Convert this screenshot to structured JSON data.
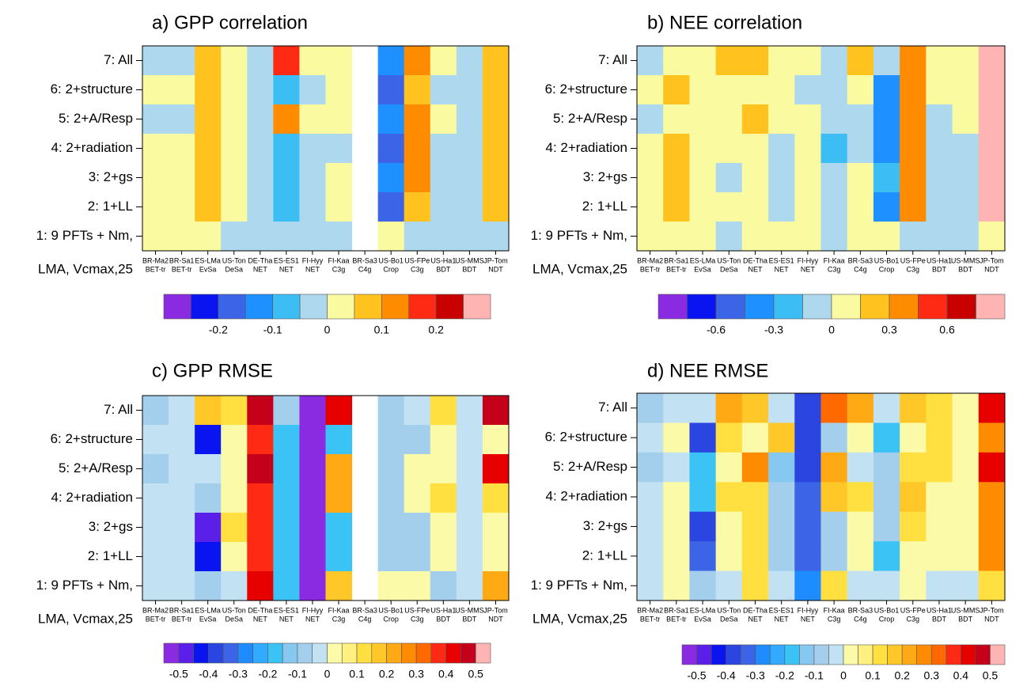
{
  "chart_data": [
    {
      "type": "heatmap",
      "title": "a) GPP correlation",
      "categories": [
        "BR-Ma2",
        "BR-Sa1",
        "ES-LMa",
        "US-Ton",
        "DE-Tha",
        "ES-ES1",
        "FI-Hyy",
        "FI-Kaa",
        "BR-Sa3",
        "US-Bo1",
        "US-FPe",
        "US-Ha1",
        "US-MMS",
        "JP-Tom"
      ],
      "subcategories": [
        "BET-tr",
        "BET-tr",
        "EvSa",
        "DeSa",
        "NET",
        "NET",
        "NET",
        "C3g",
        "C4g",
        "Crop",
        "C3g",
        "BDT",
        "BDT",
        "NDT"
      ],
      "rows": [
        "7: All",
        "6: 2+structure",
        "5: 2+A/Resp",
        "4: 2+radiation",
        "3: 2+gs",
        "2: 1+LL",
        "1: 9 PFTs + Nm,"
      ],
      "row_note": "LMA, Vcmax,25",
      "values": [
        [
          -0.025,
          -0.025,
          0.075,
          0.025,
          -0.025,
          0.175,
          0.025,
          0.025,
          null,
          -0.125,
          0.125,
          0.025,
          -0.025,
          0.075
        ],
        [
          0.025,
          0.025,
          0.075,
          0.025,
          -0.025,
          -0.075,
          -0.025,
          0.025,
          null,
          -0.175,
          0.075,
          -0.025,
          -0.025,
          0.075
        ],
        [
          -0.025,
          -0.025,
          0.075,
          0.025,
          -0.025,
          0.125,
          0.025,
          0.025,
          null,
          -0.125,
          0.125,
          0.025,
          -0.025,
          0.075
        ],
        [
          0.025,
          0.025,
          0.075,
          0.025,
          -0.025,
          -0.075,
          -0.025,
          -0.025,
          null,
          -0.175,
          0.125,
          -0.025,
          -0.025,
          0.075
        ],
        [
          0.025,
          0.025,
          0.075,
          0.025,
          -0.025,
          -0.075,
          -0.025,
          0.025,
          null,
          -0.125,
          0.125,
          -0.025,
          -0.025,
          0.075
        ],
        [
          0.025,
          0.025,
          0.075,
          0.025,
          -0.025,
          -0.075,
          -0.025,
          0.025,
          null,
          -0.175,
          0.075,
          -0.025,
          -0.025,
          0.075
        ],
        [
          0.025,
          0.025,
          0.025,
          -0.025,
          -0.025,
          -0.025,
          -0.025,
          -0.025,
          null,
          0.025,
          -0.025,
          -0.025,
          -0.025,
          -0.025
        ]
      ],
      "colorbar": {
        "levels": [
          -0.3,
          -0.25,
          -0.2,
          -0.15,
          -0.1,
          -0.05,
          0,
          0.05,
          0.1,
          0.15,
          0.2,
          0.25,
          0.3
        ],
        "colors": [
          "#8a2be2",
          "#0a14f0",
          "#3c64e6",
          "#1e90ff",
          "#3cbef5",
          "#add8ee",
          "#fafaa0",
          "#ffc21e",
          "#ff8c00",
          "#ff2a14",
          "#c80000",
          "#ffb4b4"
        ],
        "ticks": [
          -0.2,
          -0.1,
          0,
          0.1,
          0.2
        ]
      }
    },
    {
      "type": "heatmap",
      "title": "b) NEE correlation",
      "categories": [
        "BR-Ma2",
        "BR-Sa1",
        "ES-LMa",
        "US-Ton",
        "DE-Tha",
        "ES-ES1",
        "FI-Hyy",
        "FI-Kaa",
        "BR-Sa3",
        "US-Bo1",
        "US-FPe",
        "US-Ha1",
        "US-MMS",
        "JP-Tom"
      ],
      "subcategories": [
        "BET-tr",
        "BET-tr",
        "EvSa",
        "DeSa",
        "NET",
        "NET",
        "NET",
        "C3g",
        "C4g",
        "Crop",
        "C3g",
        "BDT",
        "BDT",
        "NDT"
      ],
      "rows": [
        "7: All",
        "6: 2+structure",
        "5: 2+A/Resp",
        "4: 2+radiation",
        "3: 2+gs",
        "2: 1+LL",
        "1: 9 PFTs + Nm,"
      ],
      "row_note": "LMA, Vcmax,25",
      "values": [
        [
          -0.075,
          0.075,
          0.075,
          0.225,
          0.225,
          0.075,
          0.075,
          -0.075,
          0.225,
          -0.075,
          0.375,
          0.075,
          0.075,
          0.825
        ],
        [
          0.075,
          0.225,
          0.075,
          0.075,
          0.075,
          0.075,
          -0.075,
          -0.075,
          0.075,
          -0.375,
          0.375,
          0.075,
          0.075,
          0.825
        ],
        [
          -0.075,
          0.075,
          0.075,
          0.075,
          0.225,
          0.075,
          0.075,
          -0.075,
          -0.075,
          -0.375,
          0.375,
          -0.075,
          0.075,
          0.825
        ],
        [
          0.075,
          0.225,
          0.075,
          0.075,
          0.075,
          -0.075,
          0.075,
          -0.225,
          -0.075,
          -0.375,
          0.375,
          -0.075,
          -0.075,
          0.825
        ],
        [
          0.075,
          0.225,
          0.075,
          -0.075,
          0.075,
          -0.075,
          0.075,
          -0.075,
          0.075,
          -0.225,
          0.375,
          -0.075,
          -0.075,
          0.825
        ],
        [
          0.075,
          0.225,
          0.075,
          0.075,
          0.075,
          -0.075,
          0.075,
          -0.075,
          0.075,
          -0.375,
          0.375,
          -0.075,
          -0.075,
          0.825
        ],
        [
          0.075,
          0.075,
          0.075,
          -0.075,
          0.075,
          0.075,
          0.075,
          -0.075,
          0.075,
          0.075,
          -0.075,
          -0.075,
          -0.075,
          0.075
        ]
      ],
      "colorbar": {
        "levels": [
          -0.9,
          -0.75,
          -0.6,
          -0.45,
          -0.3,
          -0.15,
          0,
          0.15,
          0.3,
          0.45,
          0.6,
          0.75,
          0.9
        ],
        "colors": [
          "#8a2be2",
          "#0a14f0",
          "#3c64e6",
          "#1e90ff",
          "#3cbef5",
          "#add8ee",
          "#fafaa0",
          "#ffc21e",
          "#ff8c00",
          "#ff2a14",
          "#c80000",
          "#ffb4b4"
        ],
        "ticks": [
          -0.6,
          -0.3,
          0,
          0.3,
          0.6
        ]
      }
    },
    {
      "type": "heatmap",
      "title": "c) GPP RMSE",
      "categories": [
        "BR-Ma2",
        "BR-Sa1",
        "ES-LMa",
        "US-Ton",
        "DE-Tha",
        "ES-ES1",
        "FI-Hyy",
        "FI-Kaa",
        "BR-Sa3",
        "US-Bo1",
        "US-FPe",
        "US-Ha1",
        "US-MMS",
        "JP-Tom"
      ],
      "subcategories": [
        "BET-tr",
        "BET-tr",
        "EvSa",
        "DeSa",
        "NET",
        "NET",
        "NET",
        "C3g",
        "C4g",
        "Crop",
        "C3g",
        "BDT",
        "BDT",
        "NDT"
      ],
      "rows": [
        "7: All",
        "6: 2+structure",
        "5: 2+A/Resp",
        "4: 2+radiation",
        "3: 2+gs",
        "2: 1+LL",
        "1: 9 PFTs + Nm,"
      ],
      "row_note": "LMA, Vcmax,25",
      "values": [
        [
          -0.075,
          -0.025,
          0.175,
          0.125,
          0.475,
          -0.075,
          -0.525,
          0.425,
          null,
          -0.075,
          -0.025,
          0.125,
          -0.025,
          0.475
        ],
        [
          -0.025,
          -0.025,
          -0.425,
          0.025,
          0.375,
          -0.175,
          -0.525,
          -0.175,
          null,
          -0.075,
          -0.075,
          0.025,
          -0.025,
          0.025
        ],
        [
          -0.075,
          -0.025,
          -0.025,
          0.025,
          0.475,
          -0.175,
          -0.525,
          0.225,
          null,
          -0.075,
          0.025,
          0.025,
          -0.025,
          0.425
        ],
        [
          -0.025,
          -0.025,
          -0.075,
          0.025,
          0.375,
          -0.175,
          -0.525,
          0.225,
          null,
          -0.075,
          0.025,
          0.125,
          -0.025,
          0.125
        ],
        [
          -0.025,
          -0.025,
          -0.475,
          0.125,
          0.375,
          -0.175,
          -0.525,
          -0.175,
          null,
          -0.075,
          -0.075,
          0.025,
          -0.025,
          0.025
        ],
        [
          -0.025,
          -0.025,
          -0.425,
          0.025,
          0.375,
          -0.175,
          -0.525,
          -0.175,
          null,
          -0.075,
          -0.075,
          0.025,
          -0.025,
          0.025
        ],
        [
          -0.025,
          -0.025,
          -0.075,
          -0.025,
          0.425,
          -0.175,
          -0.525,
          0.175,
          null,
          0.025,
          0.025,
          -0.075,
          -0.025,
          0.225
        ]
      ],
      "colorbar": {
        "levels": [
          -0.55,
          -0.5,
          -0.45,
          -0.4,
          -0.35,
          -0.3,
          -0.25,
          -0.2,
          -0.15,
          -0.1,
          -0.05,
          0,
          0.05,
          0.1,
          0.15,
          0.2,
          0.25,
          0.3,
          0.35,
          0.4,
          0.45,
          0.5,
          0.55
        ],
        "colors": [
          "#8a2be2",
          "#5a1fe8",
          "#0a14f0",
          "#2a45e0",
          "#3c64e6",
          "#1e8cff",
          "#32aaff",
          "#3cc3f5",
          "#87c8f0",
          "#a3cfec",
          "#c2e2f4",
          "#fafaa8",
          "#fff080",
          "#ffe040",
          "#ffc828",
          "#ffaa14",
          "#ff8c00",
          "#ff6a00",
          "#ff2a14",
          "#e60000",
          "#c4001a",
          "#ffb4b4"
        ],
        "ticks": [
          -0.5,
          -0.4,
          -0.3,
          -0.2,
          -0.1,
          0,
          0.1,
          0.2,
          0.3,
          0.4,
          0.5
        ]
      }
    },
    {
      "type": "heatmap",
      "title": "d) NEE RMSE",
      "categories": [
        "BR-Ma2",
        "BR-Sa1",
        "ES-LMa",
        "US-Ton",
        "DE-Tha",
        "ES-ES1",
        "FI-Hyy",
        "FI-Kaa",
        "BR-Sa3",
        "US-Bo1",
        "US-FPe",
        "US-Ha1",
        "US-MMS",
        "JP-Tom"
      ],
      "subcategories": [
        "BET-tr",
        "BET-tr",
        "EvSa",
        "DeSa",
        "NET",
        "NET",
        "NET",
        "C3g",
        "C4g",
        "Crop",
        "C3g",
        "BDT",
        "BDT",
        "NDT"
      ],
      "rows": [
        "7: All",
        "6: 2+structure",
        "5: 2+A/Resp",
        "4: 2+radiation",
        "3: 2+gs",
        "2: 1+LL",
        "1: 9 PFTs + Nm,"
      ],
      "row_note": "LMA, Vcmax,25",
      "values": [
        [
          -0.075,
          -0.025,
          -0.025,
          0.225,
          0.175,
          -0.025,
          -0.375,
          0.325,
          0.225,
          -0.025,
          0.175,
          0.125,
          0.025,
          0.425
        ],
        [
          -0.025,
          0.025,
          -0.375,
          0.125,
          0.025,
          0.175,
          -0.375,
          -0.075,
          0.025,
          -0.175,
          0.025,
          0.125,
          0.025,
          0.275
        ],
        [
          -0.075,
          -0.025,
          -0.175,
          0.025,
          0.275,
          -0.125,
          -0.375,
          0.225,
          -0.025,
          -0.075,
          0.125,
          0.125,
          0.025,
          0.425
        ],
        [
          -0.025,
          0.025,
          -0.175,
          0.125,
          0.125,
          -0.075,
          -0.325,
          0.175,
          0.125,
          -0.075,
          0.175,
          0.025,
          0.025,
          0.275
        ],
        [
          -0.025,
          0.025,
          -0.375,
          0.025,
          0.125,
          -0.075,
          -0.325,
          -0.075,
          0.025,
          -0.075,
          0.125,
          0.025,
          0.025,
          0.275
        ],
        [
          -0.025,
          0.025,
          -0.325,
          0.025,
          0.125,
          -0.075,
          -0.325,
          -0.075,
          0.025,
          -0.175,
          0.025,
          0.025,
          0.025,
          0.275
        ],
        [
          -0.025,
          0.025,
          -0.075,
          -0.025,
          0.125,
          -0.025,
          -0.275,
          0.125,
          -0.025,
          -0.025,
          0.025,
          -0.025,
          -0.025,
          0.125
        ]
      ],
      "colorbar": {
        "levels": [
          -0.55,
          -0.5,
          -0.45,
          -0.4,
          -0.35,
          -0.3,
          -0.25,
          -0.2,
          -0.15,
          -0.1,
          -0.05,
          0,
          0.05,
          0.1,
          0.15,
          0.2,
          0.25,
          0.3,
          0.35,
          0.4,
          0.45,
          0.5,
          0.55
        ],
        "colors": [
          "#8a2be2",
          "#5a1fe8",
          "#0a14f0",
          "#2a45e0",
          "#3c64e6",
          "#1e8cff",
          "#32aaff",
          "#3cc3f5",
          "#87c8f0",
          "#a3cfec",
          "#c2e2f4",
          "#fafaa8",
          "#fff080",
          "#ffe040",
          "#ffc828",
          "#ffaa14",
          "#ff8c00",
          "#ff6a00",
          "#ff2a14",
          "#e60000",
          "#c4001a",
          "#ffb4b4"
        ],
        "ticks": [
          -0.5,
          -0.4,
          -0.3,
          -0.2,
          -0.1,
          0,
          0.1,
          0.2,
          0.3,
          0.4,
          0.5
        ]
      }
    }
  ]
}
